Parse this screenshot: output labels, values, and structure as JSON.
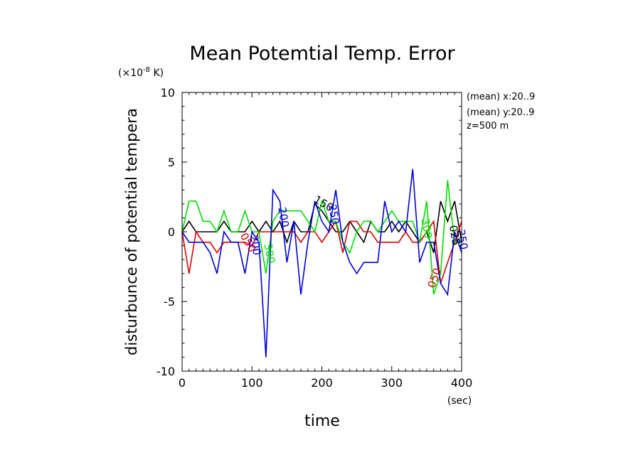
{
  "chart_data": {
    "type": "line",
    "title": "Mean Potemtial Temp. Error",
    "xlabel": "time",
    "x_unit": "(sec)",
    "ylabel": "disturbunce of potential tempera",
    "y_unit_prefix": "(×10",
    "y_unit_exp": "-8",
    "y_unit_suffix": " K)",
    "xlim": [
      0,
      400
    ],
    "ylim": [
      -10,
      10
    ],
    "x_ticks": [
      0,
      100,
      200,
      300,
      400
    ],
    "y_ticks": [
      -10,
      -5,
      0,
      5,
      10
    ],
    "annotations": [
      "(mean) x:20..9",
      "(mean) y:20..9",
      "z=500 m"
    ],
    "x": [
      0,
      10,
      20,
      30,
      40,
      50,
      60,
      70,
      80,
      90,
      100,
      110,
      120,
      130,
      140,
      150,
      160,
      170,
      180,
      190,
      200,
      210,
      220,
      230,
      240,
      250,
      260,
      270,
      280,
      290,
      300,
      310,
      320,
      330,
      340,
      350,
      360,
      370,
      380,
      390,
      400
    ],
    "series": [
      {
        "label": "150",
        "color": "#000000",
        "values": [
          0,
          0.75,
          0,
          0,
          0,
          0,
          0.75,
          0,
          0,
          0,
          0.75,
          0,
          0.75,
          0,
          0.75,
          -0.75,
          0.75,
          0,
          0,
          2,
          1.5,
          0.75,
          0,
          0,
          0.75,
          0,
          -0.75,
          0.75,
          0,
          0,
          0.75,
          0,
          0.75,
          0,
          -0.75,
          0,
          -1.5,
          2.2,
          0.75,
          2.2,
          -0.75
        ]
      },
      {
        "label": "050",
        "color": "#e00000",
        "values": [
          0,
          -3,
          0,
          -0.75,
          -0.75,
          -1.5,
          -0.75,
          -0.75,
          -0.75,
          -0.75,
          -1,
          0,
          0,
          0,
          0,
          0,
          0,
          -0.75,
          0,
          0,
          -0.75,
          0,
          0.75,
          -1.5,
          0.75,
          0.75,
          0,
          0,
          -0.75,
          -0.75,
          -0.75,
          -0.75,
          0,
          -0.75,
          -0.75,
          0,
          0.75,
          -3.7,
          -2.2,
          -0.75,
          0.75
        ]
      },
      {
        "label": "300",
        "color": "#00e000",
        "values": [
          0,
          2.2,
          2.2,
          0.75,
          0.75,
          0,
          1.5,
          0,
          0,
          1.5,
          0,
          0,
          -3,
          0.75,
          1.5,
          1.5,
          1.5,
          1.5,
          0.75,
          0,
          2.2,
          0.75,
          0.75,
          -0.75,
          -1.5,
          0,
          0.75,
          0.75,
          0,
          0.75,
          1.5,
          0.75,
          0.75,
          0.75,
          -0.75,
          2.2,
          -4.5,
          -3,
          3.7,
          -0.75,
          -0.75
        ]
      },
      {
        "label": "200",
        "color": "#0000e0",
        "values": [
          0,
          -0.75,
          -0.75,
          -0.75,
          -1.5,
          -3,
          0,
          -0.75,
          -0.75,
          -3,
          0,
          -0.75,
          -9,
          3,
          2.2,
          -2.2,
          0.75,
          -4.5,
          -0.75,
          2.2,
          0.75,
          0,
          3,
          -0.75,
          -2.2,
          -3,
          -2.2,
          -2.2,
          -2.2,
          2.2,
          0,
          0.75,
          0,
          4.5,
          -2.2,
          -0.75,
          -0.75,
          -3.7,
          -4.5,
          0,
          -1.5
        ]
      }
    ],
    "contour_labels": [
      {
        "text": "150",
        "color": "#000000",
        "x": 200,
        "y": 1.8,
        "rotate": 30
      },
      {
        "text": "250",
        "color": "#0000e0",
        "x": 212,
        "y": 1.2,
        "rotate": 80
      },
      {
        "text": "250",
        "color": "#0000e0",
        "x": 396,
        "y": -0.6,
        "rotate": 80
      },
      {
        "text": "200",
        "color": "#0000e0",
        "x": 140,
        "y": 1.0,
        "rotate": 80
      },
      {
        "text": "200",
        "color": "#0000e0",
        "x": 100,
        "y": -1.0,
        "rotate": 80
      },
      {
        "text": "300",
        "color": "#00e000",
        "x": 120,
        "y": -1.6,
        "rotate": 80
      },
      {
        "text": "050",
        "color": "#e00000",
        "x": 90,
        "y": -0.9,
        "rotate": 60
      },
      {
        "text": "050",
        "color": "#e00000",
        "x": 366,
        "y": -3.4,
        "rotate": -70
      },
      {
        "text": "300",
        "color": "#00e000",
        "x": 345,
        "y": 0.2,
        "rotate": 80
      },
      {
        "text": "025",
        "color": "#000000",
        "x": 385,
        "y": -0.3,
        "rotate": 80
      }
    ]
  }
}
